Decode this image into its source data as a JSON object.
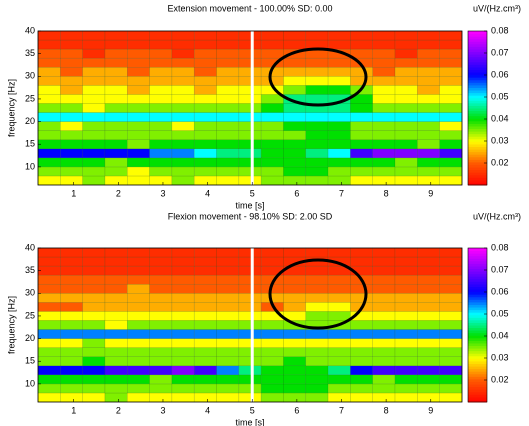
{
  "chart_data": [
    {
      "type": "heatmap",
      "title": "Extension movement - 100.00% SD: 0.00",
      "xlabel": "time [s]",
      "ylabel": "frequency [Hz]",
      "colorbar_label": "uV/(Hz.cm³)",
      "x": [
        0.2,
        0.7,
        1.2,
        1.7,
        2.2,
        2.7,
        3.2,
        3.7,
        4.2,
        4.7,
        5.2,
        5.7,
        6.2,
        6.7,
        7.2,
        7.7,
        8.2,
        8.7,
        9.2,
        9.7
      ],
      "y": [
        6,
        8,
        10,
        12,
        14,
        16,
        18,
        20,
        22,
        24,
        26,
        28,
        30,
        32,
        34,
        36,
        38,
        40
      ],
      "values": [
        [
          0.03,
          0.03,
          0.035,
          0.03,
          0.03,
          0.03,
          0.035,
          0.03,
          0.03,
          0.03,
          0.035,
          0.035,
          0.035,
          0.035,
          0.03,
          0.03,
          0.03,
          0.03,
          0.03
        ],
        [
          0.035,
          0.035,
          0.035,
          0.035,
          0.03,
          0.035,
          0.035,
          0.035,
          0.035,
          0.035,
          0.035,
          0.04,
          0.04,
          0.035,
          0.035,
          0.035,
          0.035,
          0.035,
          0.035
        ],
        [
          0.04,
          0.04,
          0.04,
          0.035,
          0.04,
          0.04,
          0.04,
          0.04,
          0.04,
          0.04,
          0.04,
          0.04,
          0.04,
          0.04,
          0.04,
          0.04,
          0.035,
          0.04,
          0.04
        ],
        [
          0.06,
          0.06,
          0.06,
          0.06,
          0.06,
          0.055,
          0.055,
          0.05,
          0.045,
          0.045,
          0.04,
          0.04,
          0.045,
          0.05,
          0.065,
          0.07,
          0.07,
          0.07,
          0.065
        ],
        [
          0.04,
          0.04,
          0.04,
          0.04,
          0.035,
          0.04,
          0.04,
          0.04,
          0.04,
          0.04,
          0.04,
          0.04,
          0.04,
          0.04,
          0.04,
          0.04,
          0.04,
          0.035,
          0.04
        ],
        [
          0.035,
          0.035,
          0.035,
          0.035,
          0.035,
          0.035,
          0.035,
          0.035,
          0.035,
          0.035,
          0.035,
          0.035,
          0.04,
          0.04,
          0.035,
          0.035,
          0.035,
          0.035,
          0.035
        ],
        [
          0.035,
          0.03,
          0.035,
          0.035,
          0.035,
          0.035,
          0.03,
          0.035,
          0.035,
          0.035,
          0.035,
          0.04,
          0.04,
          0.04,
          0.035,
          0.035,
          0.035,
          0.035,
          0.03
        ],
        [
          0.05,
          0.05,
          0.05,
          0.05,
          0.05,
          0.05,
          0.05,
          0.05,
          0.05,
          0.05,
          0.05,
          0.05,
          0.05,
          0.05,
          0.05,
          0.05,
          0.05,
          0.05,
          0.05
        ],
        [
          0.035,
          0.035,
          0.03,
          0.035,
          0.035,
          0.035,
          0.035,
          0.035,
          0.035,
          0.035,
          0.04,
          0.045,
          0.045,
          0.045,
          0.04,
          0.035,
          0.035,
          0.035,
          0.035
        ],
        [
          0.03,
          0.03,
          0.03,
          0.03,
          0.03,
          0.03,
          0.03,
          0.03,
          0.03,
          0.03,
          0.035,
          0.045,
          0.045,
          0.045,
          0.04,
          0.03,
          0.03,
          0.03,
          0.03
        ],
        [
          0.03,
          0.025,
          0.03,
          0.03,
          0.025,
          0.03,
          0.03,
          0.025,
          0.03,
          0.03,
          0.03,
          0.035,
          0.04,
          0.04,
          0.035,
          0.03,
          0.03,
          0.025,
          0.03
        ],
        [
          0.025,
          0.025,
          0.025,
          0.025,
          0.025,
          0.025,
          0.025,
          0.025,
          0.025,
          0.025,
          0.025,
          0.03,
          0.03,
          0.03,
          0.025,
          0.025,
          0.025,
          0.025,
          0.025
        ],
        [
          0.025,
          0.02,
          0.025,
          0.025,
          0.02,
          0.025,
          0.025,
          0.02,
          0.025,
          0.025,
          0.025,
          0.025,
          0.025,
          0.025,
          0.025,
          0.02,
          0.025,
          0.025,
          0.025
        ],
        [
          0.02,
          0.02,
          0.02,
          0.02,
          0.02,
          0.02,
          0.02,
          0.02,
          0.02,
          0.02,
          0.02,
          0.02,
          0.02,
          0.02,
          0.02,
          0.02,
          0.02,
          0.02,
          0.02
        ],
        [
          0.02,
          0.02,
          0.015,
          0.02,
          0.02,
          0.02,
          0.015,
          0.02,
          0.02,
          0.02,
          0.02,
          0.02,
          0.02,
          0.02,
          0.02,
          0.02,
          0.015,
          0.02,
          0.02
        ],
        [
          0.015,
          0.015,
          0.015,
          0.015,
          0.015,
          0.015,
          0.015,
          0.015,
          0.015,
          0.015,
          0.015,
          0.015,
          0.015,
          0.015,
          0.015,
          0.015,
          0.015,
          0.015,
          0.015
        ],
        [
          0.015,
          0.015,
          0.015,
          0.015,
          0.015,
          0.015,
          0.015,
          0.015,
          0.015,
          0.015,
          0.015,
          0.015,
          0.015,
          0.015,
          0.015,
          0.015,
          0.015,
          0.015,
          0.015
        ]
      ],
      "xlim": [
        0.2,
        9.7
      ],
      "ylim": [
        6,
        40
      ],
      "xticks": [
        1,
        2,
        3,
        4,
        5,
        6,
        7,
        8,
        9
      ],
      "yticks": [
        10,
        15,
        20,
        25,
        30,
        35,
        40
      ],
      "clim": [
        0.01,
        0.08
      ],
      "cticks": [
        0.02,
        0.03,
        0.04,
        0.05,
        0.06,
        0.07,
        0.08
      ],
      "colormap": [
        "#ff0000",
        "#ff5a00",
        "#ffff00",
        "#00e000",
        "#00ffff",
        "#0000ff",
        "#8000ff",
        "#ff00ff"
      ],
      "vlines": [
        5
      ]
    },
    {
      "type": "heatmap",
      "title": "Flexion movement - 98.10% SD: 2.00 SD",
      "xlabel": "time [s]",
      "ylabel": "frequency [Hz]",
      "colorbar_label": "uV/(Hz.cm³)",
      "x": [
        0.2,
        0.7,
        1.2,
        1.7,
        2.2,
        2.7,
        3.2,
        3.7,
        4.2,
        4.7,
        5.2,
        5.7,
        6.2,
        6.7,
        7.2,
        7.7,
        8.2,
        8.7,
        9.2,
        9.7
      ],
      "y": [
        6,
        8,
        10,
        12,
        14,
        16,
        18,
        20,
        22,
        24,
        26,
        28,
        30,
        32,
        34,
        36,
        38,
        40
      ],
      "values": [
        [
          0.03,
          0.03,
          0.03,
          0.035,
          0.03,
          0.03,
          0.03,
          0.03,
          0.03,
          0.03,
          0.035,
          0.035,
          0.035,
          0.03,
          0.03,
          0.03,
          0.03,
          0.03,
          0.03
        ],
        [
          0.035,
          0.035,
          0.035,
          0.035,
          0.035,
          0.035,
          0.035,
          0.035,
          0.035,
          0.035,
          0.04,
          0.04,
          0.04,
          0.035,
          0.035,
          0.035,
          0.035,
          0.035,
          0.035
        ],
        [
          0.04,
          0.04,
          0.04,
          0.04,
          0.04,
          0.035,
          0.04,
          0.04,
          0.04,
          0.04,
          0.04,
          0.04,
          0.04,
          0.04,
          0.04,
          0.035,
          0.04,
          0.04,
          0.04
        ],
        [
          0.06,
          0.06,
          0.06,
          0.065,
          0.065,
          0.065,
          0.07,
          0.065,
          0.055,
          0.045,
          0.04,
          0.04,
          0.04,
          0.045,
          0.06,
          0.065,
          0.065,
          0.065,
          0.065
        ],
        [
          0.035,
          0.035,
          0.04,
          0.035,
          0.035,
          0.035,
          0.035,
          0.035,
          0.035,
          0.035,
          0.035,
          0.04,
          0.035,
          0.035,
          0.035,
          0.035,
          0.035,
          0.035,
          0.035
        ],
        [
          0.035,
          0.035,
          0.035,
          0.035,
          0.035,
          0.035,
          0.035,
          0.035,
          0.035,
          0.035,
          0.035,
          0.035,
          0.035,
          0.035,
          0.035,
          0.035,
          0.035,
          0.035,
          0.035
        ],
        [
          0.03,
          0.03,
          0.035,
          0.03,
          0.03,
          0.03,
          0.03,
          0.03,
          0.03,
          0.03,
          0.03,
          0.03,
          0.03,
          0.03,
          0.03,
          0.03,
          0.03,
          0.03,
          0.03
        ],
        [
          0.055,
          0.055,
          0.055,
          0.055,
          0.055,
          0.055,
          0.055,
          0.055,
          0.055,
          0.055,
          0.055,
          0.055,
          0.055,
          0.055,
          0.055,
          0.055,
          0.055,
          0.055,
          0.055
        ],
        [
          0.035,
          0.035,
          0.035,
          0.03,
          0.035,
          0.035,
          0.035,
          0.035,
          0.035,
          0.035,
          0.035,
          0.035,
          0.035,
          0.035,
          0.035,
          0.035,
          0.035,
          0.035,
          0.035
        ],
        [
          0.03,
          0.03,
          0.03,
          0.03,
          0.03,
          0.03,
          0.03,
          0.03,
          0.03,
          0.03,
          0.03,
          0.03,
          0.035,
          0.035,
          0.03,
          0.03,
          0.03,
          0.03,
          0.03
        ],
        [
          0.02,
          0.02,
          0.025,
          0.025,
          0.025,
          0.025,
          0.025,
          0.025,
          0.025,
          0.025,
          0.02,
          0.025,
          0.03,
          0.03,
          0.025,
          0.025,
          0.025,
          0.025,
          0.025
        ],
        [
          0.025,
          0.025,
          0.025,
          0.025,
          0.025,
          0.025,
          0.025,
          0.025,
          0.025,
          0.025,
          0.025,
          0.025,
          0.025,
          0.025,
          0.025,
          0.025,
          0.025,
          0.025,
          0.025
        ],
        [
          0.02,
          0.02,
          0.02,
          0.02,
          0.025,
          0.02,
          0.02,
          0.02,
          0.02,
          0.02,
          0.02,
          0.02,
          0.02,
          0.02,
          0.02,
          0.02,
          0.02,
          0.02,
          0.02
        ],
        [
          0.02,
          0.02,
          0.02,
          0.02,
          0.02,
          0.02,
          0.02,
          0.02,
          0.02,
          0.02,
          0.02,
          0.02,
          0.02,
          0.02,
          0.02,
          0.02,
          0.02,
          0.02,
          0.02
        ],
        [
          0.015,
          0.015,
          0.015,
          0.015,
          0.015,
          0.015,
          0.015,
          0.015,
          0.015,
          0.015,
          0.015,
          0.015,
          0.015,
          0.015,
          0.015,
          0.015,
          0.015,
          0.015,
          0.015
        ],
        [
          0.015,
          0.015,
          0.015,
          0.015,
          0.015,
          0.015,
          0.015,
          0.015,
          0.015,
          0.015,
          0.015,
          0.015,
          0.015,
          0.015,
          0.015,
          0.015,
          0.015,
          0.015,
          0.015
        ],
        [
          0.015,
          0.015,
          0.015,
          0.015,
          0.015,
          0.015,
          0.015,
          0.015,
          0.015,
          0.015,
          0.015,
          0.015,
          0.015,
          0.015,
          0.015,
          0.015,
          0.015,
          0.015,
          0.015
        ]
      ],
      "xlim": [
        0.2,
        9.7
      ],
      "ylim": [
        6,
        40
      ],
      "xticks": [
        1,
        2,
        3,
        4,
        5,
        6,
        7,
        8,
        9
      ],
      "yticks": [
        10,
        15,
        20,
        25,
        30,
        35,
        40
      ],
      "clim": [
        0.01,
        0.08
      ],
      "cticks": [
        0.02,
        0.03,
        0.04,
        0.05,
        0.06,
        0.07,
        0.08
      ],
      "colormap": [
        "#ff0000",
        "#ff5a00",
        "#ffff00",
        "#00e000",
        "#00ffff",
        "#0000ff",
        "#8000ff",
        "#ff00ff"
      ],
      "vlines": [
        5
      ]
    }
  ]
}
